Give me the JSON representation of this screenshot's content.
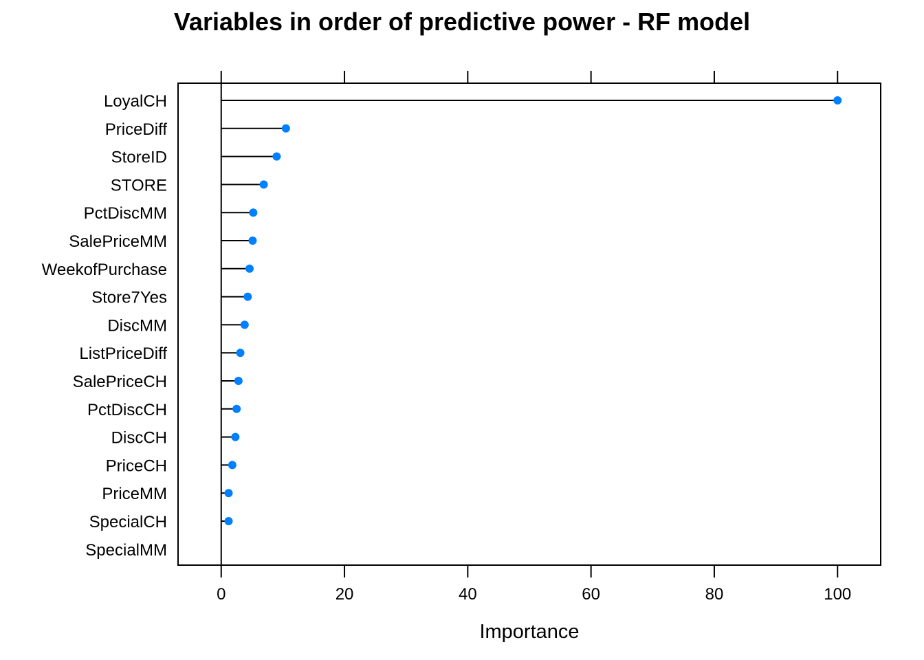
{
  "chart_data": {
    "type": "dotplot",
    "title": "Variables in order of predictive power - RF model",
    "xlabel": "Importance",
    "ylabel": "",
    "xlim": [
      -7,
      107
    ],
    "xticks": [
      0,
      20,
      40,
      60,
      80,
      100
    ],
    "xtick_labels": [
      "0",
      "20",
      "40",
      "60",
      "80",
      "100"
    ],
    "grid": false,
    "marker_color": "#0080ff",
    "line_color": "#000000",
    "categories": [
      "LoyalCH",
      "PriceDiff",
      "StoreID",
      "STORE",
      "PctDiscMM",
      "SalePriceMM",
      "WeekofPurchase",
      "Store7Yes",
      "DiscMM",
      "ListPriceDiff",
      "SalePriceCH",
      "PctDiscCH",
      "DiscCH",
      "PriceCH",
      "PriceMM",
      "SpecialCH",
      "SpecialMM"
    ],
    "values": [
      100,
      10.5,
      9.0,
      6.9,
      5.2,
      5.1,
      4.6,
      4.3,
      3.8,
      3.1,
      2.8,
      2.5,
      2.3,
      1.8,
      1.2,
      1.2,
      null
    ]
  }
}
